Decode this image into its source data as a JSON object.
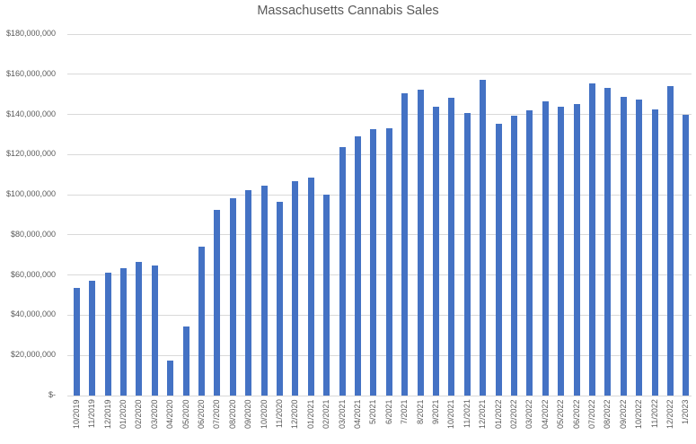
{
  "chart_data": {
    "type": "bar",
    "title": "Massachusetts Cannabis Sales",
    "xlabel": "",
    "ylabel": "",
    "values_unit": "USD",
    "categories": [
      "10/2019",
      "11/2019",
      "12/2019",
      "01/2020",
      "02/2020",
      "03/2020",
      "04/2020",
      "05/2020",
      "06/2020",
      "07/2020",
      "08/2020",
      "09/2020",
      "10/2020",
      "11/2020",
      "12/2020",
      "01/2021",
      "02/2021",
      "03/2021",
      "04/2021",
      "5/2021",
      "6/2021",
      "7/2021",
      "8/2021",
      "9/2021",
      "10/2021",
      "11/2021",
      "12/2021",
      "01/2022",
      "02/2022",
      "03/2022",
      "04/2022",
      "05/2022",
      "06/2022",
      "07/2022",
      "08/2022",
      "09/2022",
      "10/2022",
      "11/2022",
      "12/2022",
      "1/2023"
    ],
    "values": [
      53700000,
      57000000,
      61400000,
      63300000,
      66500000,
      64600000,
      17500000,
      34500000,
      74200000,
      92300000,
      98400000,
      102100000,
      104600000,
      96400000,
      106800000,
      108600000,
      99900000,
      123600000,
      128900000,
      132500000,
      133000000,
      150600000,
      152200000,
      143800000,
      148500000,
      140800000,
      157400000,
      135500000,
      139500000,
      142100000,
      146500000,
      143900000,
      145100000,
      155500000,
      153200000,
      148800000,
      147600000,
      142500000,
      154100000,
      139900000
    ],
    "ylim": [
      0,
      180000000
    ],
    "ytick_interval": 20000000,
    "ytick_labels": [
      "$-",
      "$20,000,000",
      "$40,000,000",
      "$60,000,000",
      "$80,000,000",
      "$100,000,000",
      "$120,000,000",
      "$140,000,000",
      "$160,000,000",
      "$180,000,000"
    ],
    "grid": "horizontal",
    "legend": "none",
    "bar_color": "#4472C4",
    "gridline_color": "#D9D9D9",
    "axis_label_color": "#595959",
    "title_color": "#595959",
    "background_color": "#FFFFFF"
  }
}
